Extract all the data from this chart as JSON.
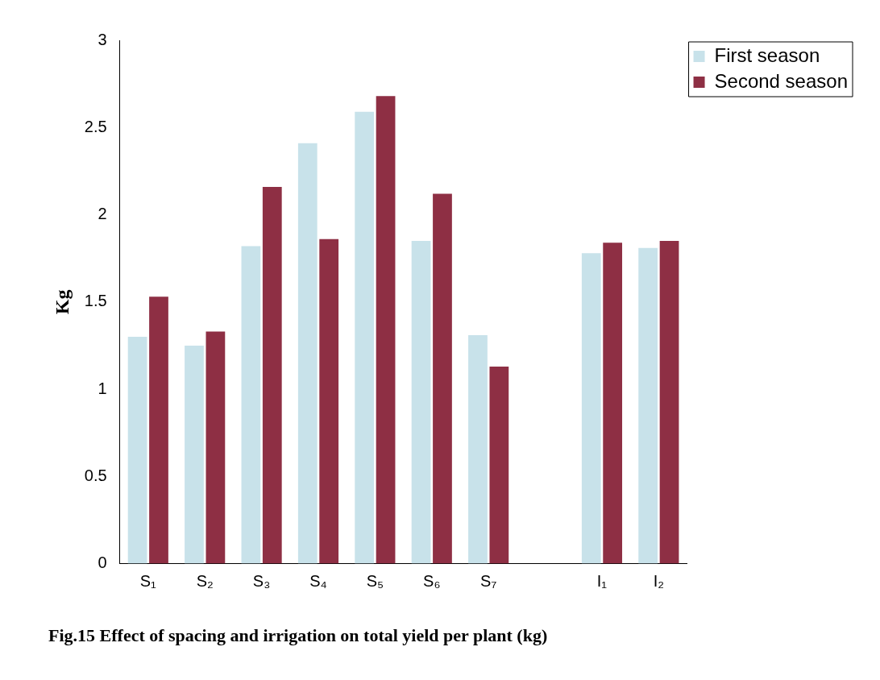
{
  "chart_data": {
    "type": "bar",
    "title": "Fig.15 Effect of spacing and irrigation on total yield per plant (kg)",
    "ylabel": "Kg",
    "categories": [
      "S₁",
      "S₂",
      "S₃",
      "S₄",
      "S₅",
      "S₆",
      "S₇",
      null,
      "I₁",
      "I₂"
    ],
    "series": [
      {
        "name": "First season",
        "color": "#c8e2ea",
        "values": [
          1.3,
          1.25,
          1.82,
          2.41,
          2.59,
          1.85,
          1.31,
          null,
          1.78,
          1.81
        ]
      },
      {
        "name": "Second season",
        "color": "#8e2f44",
        "values": [
          1.53,
          1.33,
          2.16,
          1.86,
          2.68,
          2.12,
          1.13,
          null,
          1.84,
          1.85
        ]
      }
    ],
    "ylim": [
      0,
      3
    ],
    "yticks": [
      0,
      0.5,
      1,
      1.5,
      2,
      2.5,
      3
    ],
    "grid": false,
    "legend": "top right"
  }
}
